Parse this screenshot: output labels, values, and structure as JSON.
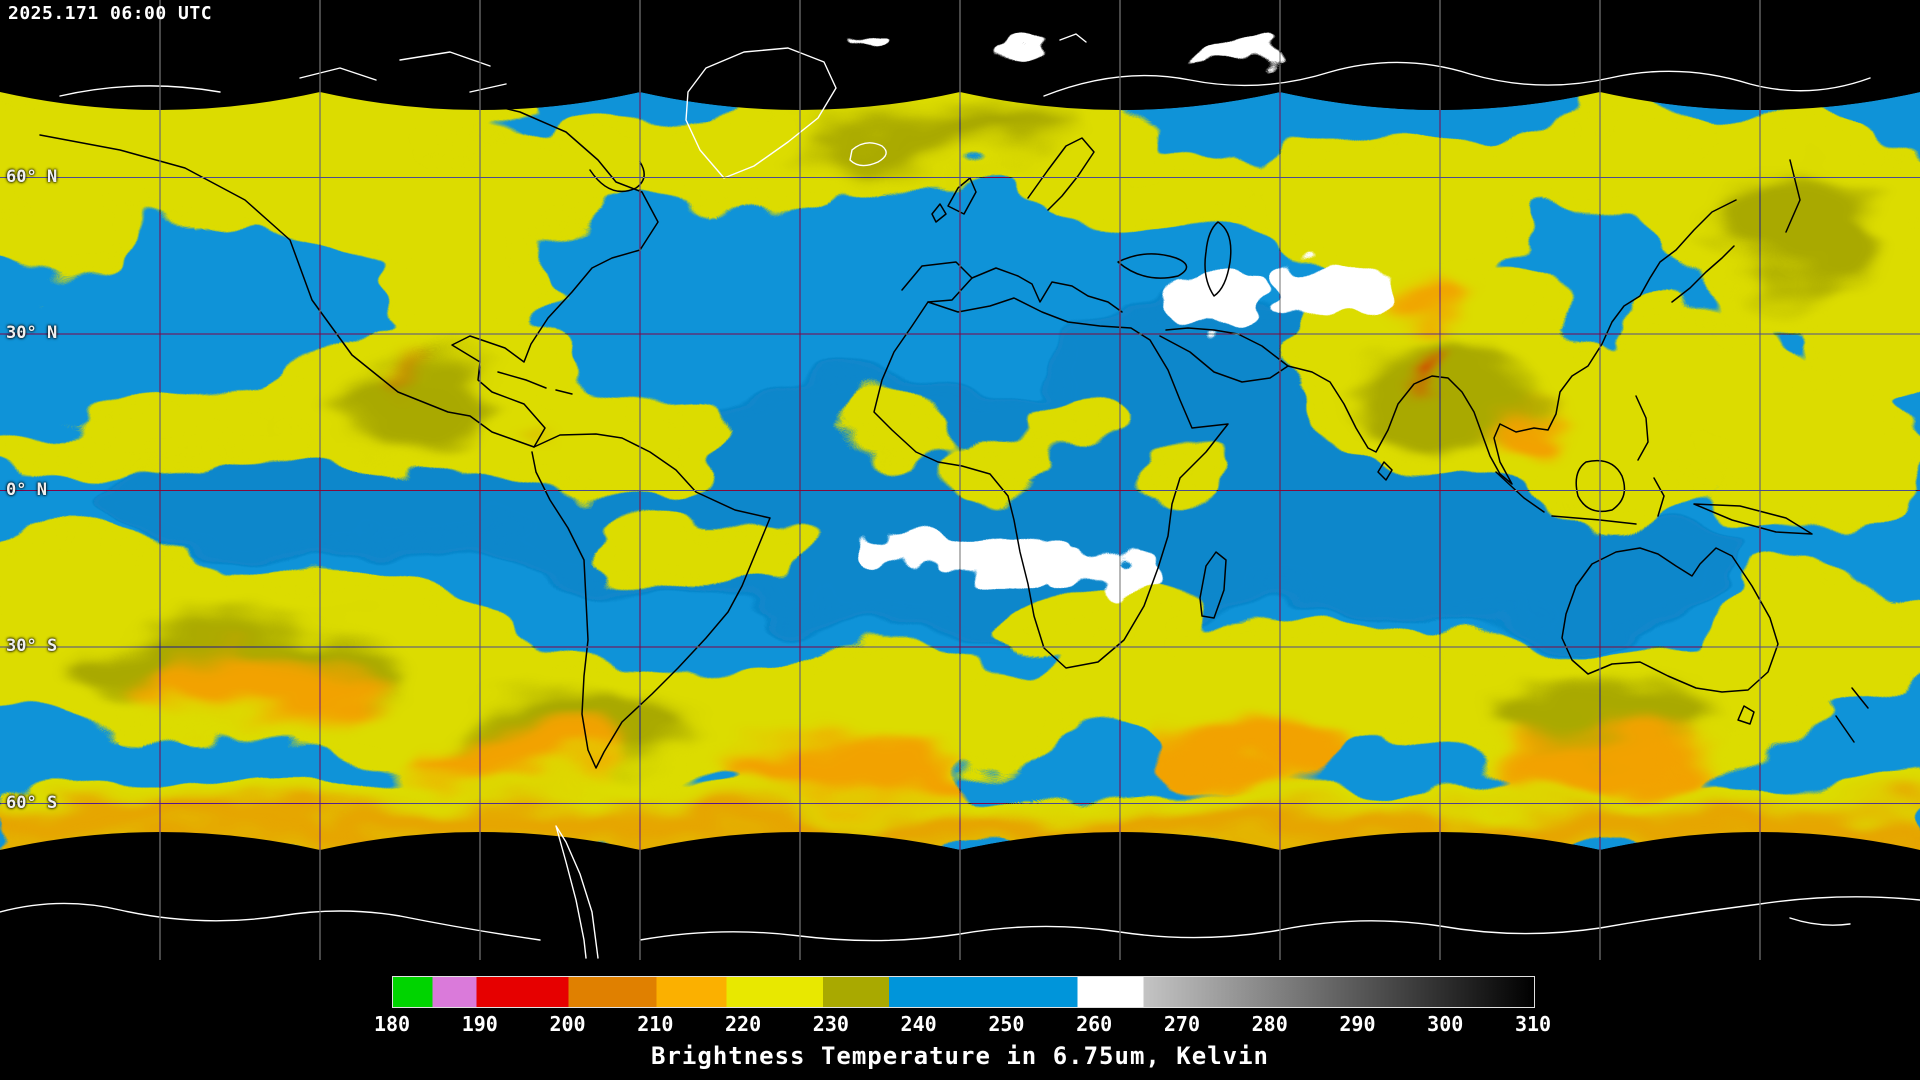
{
  "header": {
    "timestamp": "2025.171 06:00 UTC"
  },
  "map": {
    "latitude_labels": [
      {
        "text": "60° N",
        "lat": 60
      },
      {
        "text": "30° N",
        "lat": 30
      },
      {
        "text": "0° N",
        "lat": 0
      },
      {
        "text": "30° S",
        "lat": -30
      },
      {
        "text": "60° S",
        "lat": -60
      }
    ],
    "grid": {
      "longitude_spacing_deg": 30,
      "latitude_spacing_deg": 30
    }
  },
  "legend": {
    "caption": "Brightness Temperature in 6.75um, Kelvin"
  },
  "chart_data": {
    "type": "heatmap",
    "title": "Brightness Temperature in 6.75um, Kelvin",
    "timestamp": "2025.171 06:00 UTC",
    "variable": "Brightness Temperature",
    "wavelength_um": 6.75,
    "units": "Kelvin",
    "colorbar": {
      "min": 180,
      "max": 310,
      "ticks": [
        180,
        190,
        200,
        210,
        220,
        230,
        240,
        250,
        260,
        270,
        280,
        290,
        300,
        310
      ],
      "segments": [
        {
          "from": 180,
          "to": 184.5,
          "color": "#00d400"
        },
        {
          "from": 184.5,
          "to": 189.5,
          "color": "#da7ada"
        },
        {
          "from": 189.5,
          "to": 200,
          "color": "#e60000"
        },
        {
          "from": 200,
          "to": 210,
          "color": "#e08000"
        },
        {
          "from": 210,
          "to": 218,
          "color": "#fbb000"
        },
        {
          "from": 218,
          "to": 229,
          "color": "#e8e800"
        },
        {
          "from": 229,
          "to": 236.5,
          "color": "#a9a900"
        },
        {
          "from": 236.5,
          "to": 258,
          "color": "#0095da"
        },
        {
          "from": 258,
          "to": 265.5,
          "color": "#ffffff"
        },
        {
          "from": 265.5,
          "to": 310,
          "color": "#c4c4c4",
          "color_end": "#000000"
        }
      ]
    },
    "latitude_gridlines_deg": [
      60,
      30,
      0,
      -30,
      -60
    ],
    "longitude_gridline_spacing_deg": 30
  }
}
